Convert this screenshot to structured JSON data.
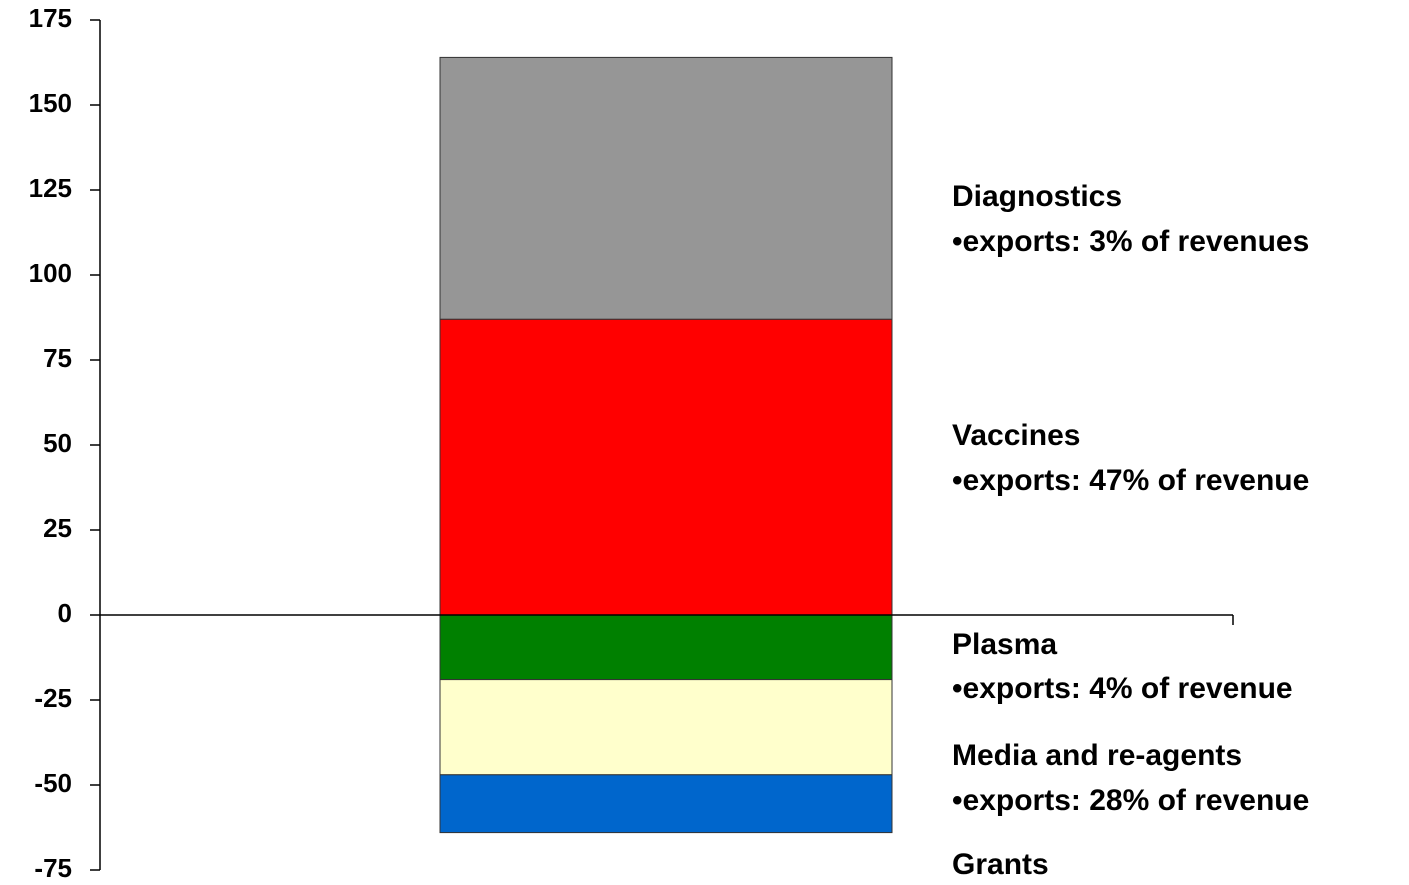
{
  "chart_data": {
    "type": "stacked_bar",
    "categories": [
      null
    ],
    "series": [
      {
        "name": "Vaccines",
        "note": "•exports: 47% of revenue",
        "color": "#ff0000",
        "values": [
          87
        ]
      },
      {
        "name": "Diagnostics",
        "note": "•exports: 3% of revenues",
        "color": "#969696",
        "values": [
          77
        ]
      },
      {
        "name": "Plasma",
        "note": "•exports: 4% of revenue",
        "color": "#008000",
        "values": [
          -19
        ]
      },
      {
        "name": "Media and re-agents",
        "note": "•exports: 28% of revenue",
        "color": "#ffffcc",
        "values": [
          -28
        ]
      },
      {
        "name": "Grants",
        "color": "#0066cc",
        "values": [
          -17
        ]
      }
    ],
    "ylim": [
      -75,
      175
    ],
    "yticks": [
      175,
      150,
      125,
      100,
      75,
      50,
      25,
      0,
      -25,
      -50,
      -75
    ]
  }
}
